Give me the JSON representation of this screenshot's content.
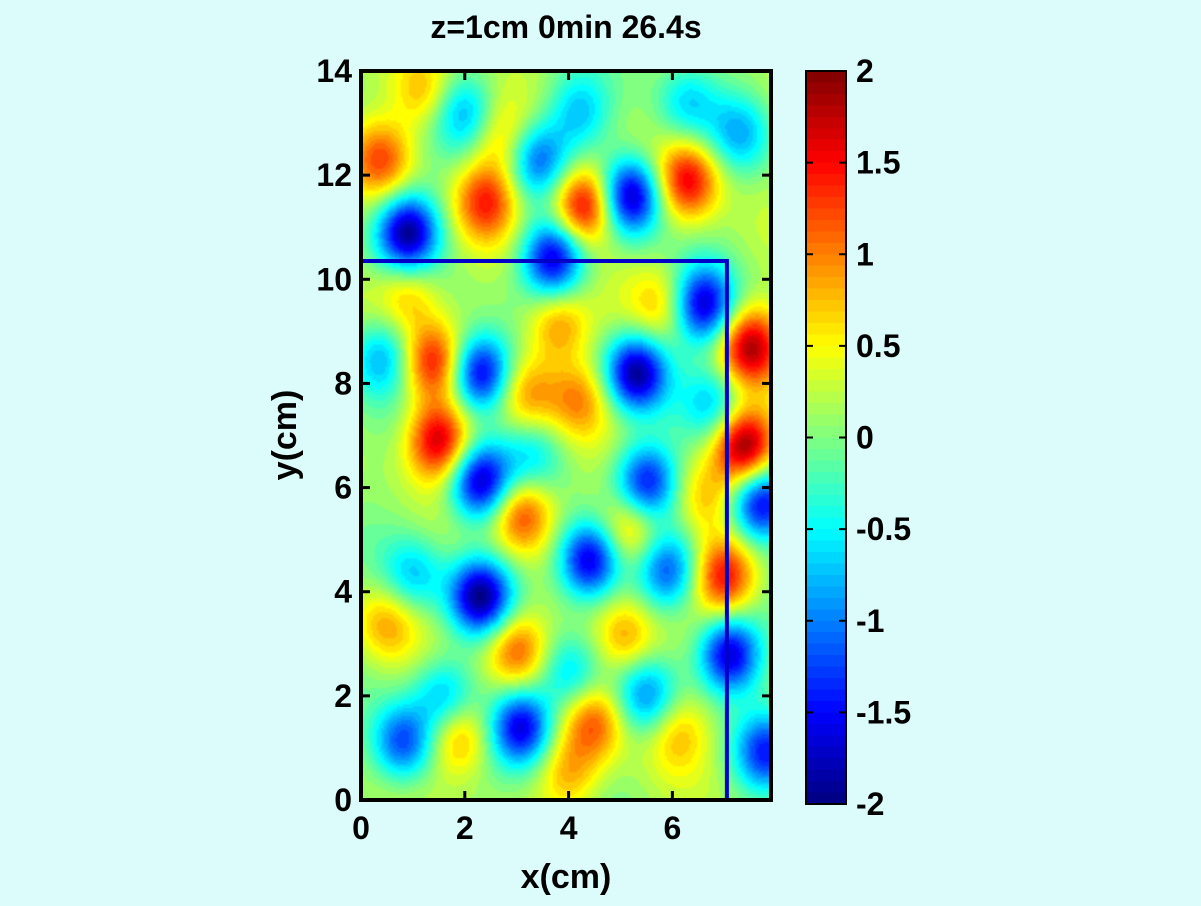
{
  "page": {
    "background": "#dcfcfc"
  },
  "chart_data": {
    "type": "heatmap",
    "title": "z=1cm 0min 26.4s",
    "xlabel": "x(cm)",
    "ylabel": "y(cm)",
    "xlim": [
      0,
      7.9
    ],
    "ylim": [
      0,
      14
    ],
    "xticks": [
      0,
      2,
      4,
      6
    ],
    "yticks": [
      0,
      2,
      4,
      6,
      8,
      10,
      12,
      14
    ],
    "colormap": "jet",
    "clim": [
      -2,
      2
    ],
    "colorbar_ticks": [
      2,
      1.5,
      1,
      0.5,
      0,
      -0.5,
      -1,
      -1.5,
      -2
    ],
    "grid": false,
    "overlay_line": {
      "color": "#0000c8",
      "points": [
        [
          0,
          10.35
        ],
        [
          7.05,
          10.35
        ],
        [
          7.05,
          0
        ]
      ]
    },
    "field_blobs": [
      {
        "x": 0.9,
        "y": 10.9,
        "v": -2.0
      },
      {
        "x": 2.3,
        "y": 8.2,
        "v": -1.9
      },
      {
        "x": 2.3,
        "y": 6.1,
        "v": -1.9
      },
      {
        "x": 2.3,
        "y": 3.9,
        "v": -2.0
      },
      {
        "x": 3.1,
        "y": 1.4,
        "v": -1.8
      },
      {
        "x": 0.8,
        "y": 1.1,
        "v": -1.4
      },
      {
        "x": 3.7,
        "y": 10.4,
        "v": -1.8
      },
      {
        "x": 5.2,
        "y": 11.6,
        "v": -2.0
      },
      {
        "x": 5.3,
        "y": 8.2,
        "v": -2.0
      },
      {
        "x": 4.4,
        "y": 4.6,
        "v": -1.9
      },
      {
        "x": 6.6,
        "y": 9.5,
        "v": -1.8
      },
      {
        "x": 5.5,
        "y": 6.1,
        "v": -1.6
      },
      {
        "x": 7.1,
        "y": 2.8,
        "v": -1.9
      },
      {
        "x": 7.7,
        "y": 5.7,
        "v": -1.8
      },
      {
        "x": 3.4,
        "y": 12.3,
        "v": -1.2
      },
      {
        "x": 2.0,
        "y": 13.2,
        "v": -0.9
      },
      {
        "x": 5.9,
        "y": 4.4,
        "v": -1.2
      },
      {
        "x": 7.8,
        "y": 0.9,
        "v": -1.4
      },
      {
        "x": 0.4,
        "y": 8.5,
        "v": -0.9
      },
      {
        "x": 1.0,
        "y": 4.3,
        "v": -0.8
      },
      {
        "x": 4.0,
        "y": 2.4,
        "v": -0.8
      },
      {
        "x": 5.5,
        "y": 2.0,
        "v": -1.0
      },
      {
        "x": 6.8,
        "y": 7.6,
        "v": -0.8
      },
      {
        "x": 7.3,
        "y": 12.8,
        "v": -0.8
      },
      {
        "x": 3.3,
        "y": 6.6,
        "v": -0.6
      },
      {
        "x": 1.6,
        "y": 2.0,
        "v": -0.9
      },
      {
        "x": 4.2,
        "y": 13.2,
        "v": -0.8
      },
      {
        "x": 6.3,
        "y": 13.4,
        "v": -0.7
      },
      {
        "x": 2.4,
        "y": 11.5,
        "v": 1.2
      },
      {
        "x": 4.3,
        "y": 11.4,
        "v": 1.7
      },
      {
        "x": 6.3,
        "y": 11.9,
        "v": 1.4
      },
      {
        "x": 0.4,
        "y": 12.3,
        "v": 1.0
      },
      {
        "x": 1.4,
        "y": 8.4,
        "v": 1.3
      },
      {
        "x": 1.5,
        "y": 6.9,
        "v": 1.6
      },
      {
        "x": 7.5,
        "y": 8.7,
        "v": 1.6
      },
      {
        "x": 7.4,
        "y": 6.8,
        "v": 1.9
      },
      {
        "x": 7.0,
        "y": 4.3,
        "v": 1.4
      },
      {
        "x": 3.1,
        "y": 5.5,
        "v": 1.2
      },
      {
        "x": 3.0,
        "y": 2.9,
        "v": 1.1
      },
      {
        "x": 4.5,
        "y": 1.5,
        "v": 1.0
      },
      {
        "x": 1.9,
        "y": 1.2,
        "v": 0.9
      },
      {
        "x": 3.8,
        "y": 9.1,
        "v": 0.9
      },
      {
        "x": 5.2,
        "y": 5.2,
        "v": 0.9
      },
      {
        "x": 5.1,
        "y": 3.1,
        "v": 0.8
      },
      {
        "x": 3.2,
        "y": 7.8,
        "v": 0.8
      },
      {
        "x": 4.2,
        "y": 7.7,
        "v": 0.8
      },
      {
        "x": 0.9,
        "y": 9.7,
        "v": 0.7
      },
      {
        "x": 6.1,
        "y": 1.3,
        "v": 0.6
      },
      {
        "x": 4.0,
        "y": 0.5,
        "v": 0.7
      },
      {
        "x": 2.7,
        "y": 12.7,
        "v": 0.6
      },
      {
        "x": 5.8,
        "y": 9.5,
        "v": 0.6
      },
      {
        "x": 0.5,
        "y": 3.4,
        "v": 0.7
      },
      {
        "x": 1.2,
        "y": 13.6,
        "v": 0.7
      },
      {
        "x": 6.6,
        "y": 5.8,
        "v": 0.5
      }
    ]
  }
}
